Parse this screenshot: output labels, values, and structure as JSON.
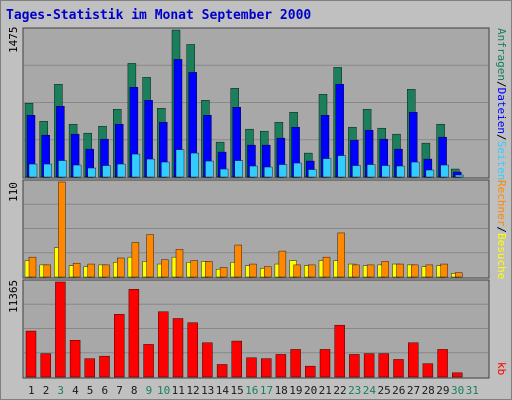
{
  "colors": {
    "frame_bg": "#c0c0c0",
    "panel_bg": "#a8a8a8",
    "title": "#0000cc",
    "anfragen": "#1a7f5a",
    "dateien": "#0000ff",
    "seiten": "#33ccff",
    "besuche": "#ffff00",
    "rechner": "#ff8800",
    "kb": "#ff0000",
    "weekday_label": "#1a1a1a",
    "weekend_label": "#1a7f5a",
    "gridline": "#888888"
  },
  "title": "Tages-Statistik im Monat September 2000",
  "chart_data": [
    {
      "type": "bar",
      "panel": "top",
      "ymax_label": "1475",
      "ylim": [
        0,
        1475
      ],
      "categories": [
        "1",
        "2",
        "3",
        "4",
        "5",
        "6",
        "7",
        "8",
        "9",
        "10",
        "11",
        "12",
        "13",
        "14",
        "15",
        "16",
        "17",
        "18",
        "19",
        "20",
        "21",
        "22",
        "23",
        "24",
        "25",
        "26",
        "27",
        "28",
        "29",
        "30",
        "31"
      ],
      "right_labels": [
        "Anfragen",
        "/",
        "Dateien",
        "/",
        "Seiten"
      ],
      "series": [
        {
          "name": "Anfragen",
          "color_key": "anfragen",
          "values": [
            740,
            560,
            930,
            530,
            440,
            510,
            680,
            1140,
            1000,
            690,
            1475,
            1330,
            770,
            350,
            890,
            480,
            460,
            550,
            650,
            240,
            830,
            1100,
            500,
            680,
            490,
            430,
            880,
            340,
            530,
            80,
            0
          ]
        },
        {
          "name": "Dateien",
          "color_key": "dateien",
          "values": [
            620,
            420,
            710,
            430,
            280,
            380,
            530,
            900,
            770,
            550,
            1180,
            1050,
            620,
            250,
            700,
            320,
            320,
            390,
            500,
            160,
            620,
            930,
            370,
            470,
            380,
            280,
            650,
            180,
            400,
            50,
            0
          ]
        },
        {
          "name": "Seiten",
          "color_key": "seiten",
          "values": [
            130,
            130,
            165,
            120,
            90,
            115,
            130,
            230,
            180,
            150,
            275,
            240,
            160,
            80,
            165,
            110,
            100,
            125,
            140,
            75,
            185,
            215,
            115,
            125,
            115,
            110,
            150,
            70,
            120,
            20,
            0
          ]
        }
      ]
    },
    {
      "type": "bar",
      "panel": "middle",
      "ymax_label": "110",
      "ylim": [
        0,
        110
      ],
      "right_labels": [
        "Rechner",
        "/",
        "Besuche"
      ],
      "series": [
        {
          "name": "Besuche",
          "color_key": "besuche",
          "values": [
            19,
            14,
            34,
            13,
            12,
            14,
            17,
            23,
            18,
            15,
            23,
            17,
            18,
            9,
            17,
            13,
            10,
            15,
            19,
            13,
            19,
            19,
            15,
            13,
            14,
            15,
            14,
            12,
            13,
            4,
            0
          ]
        },
        {
          "name": "Rechner",
          "color_key": "rechner",
          "values": [
            23,
            14,
            110,
            16,
            15,
            14,
            22,
            40,
            49,
            20,
            32,
            19,
            18,
            11,
            37,
            15,
            12,
            30,
            14,
            14,
            23,
            51,
            14,
            14,
            18,
            15,
            14,
            14,
            15,
            5,
            0
          ]
        }
      ]
    },
    {
      "type": "bar",
      "panel": "bottom",
      "ymax_label": "11365",
      "ylim": [
        0,
        11365
      ],
      "right_labels": [
        "kb"
      ],
      "series": [
        {
          "name": "kb",
          "color_key": "kb",
          "values": [
            5500,
            2800,
            11365,
            4400,
            2200,
            2500,
            7500,
            10500,
            3900,
            7800,
            7000,
            6500,
            4100,
            1500,
            4300,
            2300,
            2200,
            2700,
            3300,
            1300,
            3300,
            6200,
            2700,
            2800,
            2800,
            2100,
            4100,
            1600,
            3300,
            500,
            0
          ]
        }
      ]
    }
  ]
}
